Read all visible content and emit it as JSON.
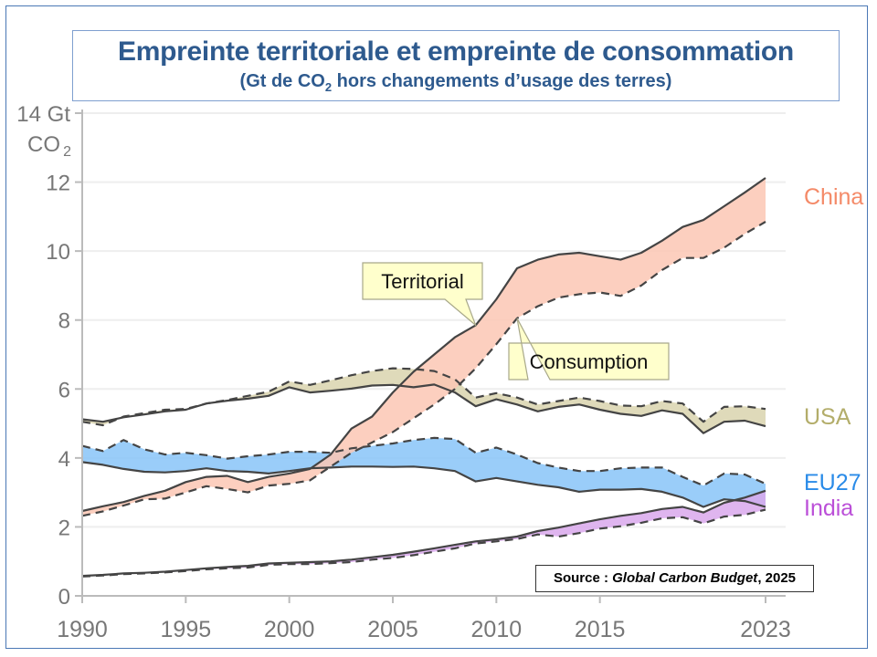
{
  "title": "Empreinte territoriale et empreinte de consommation",
  "subtitle_prefix": "(Gt de CO",
  "subtitle_sub": "2",
  "subtitle_suffix": " hors changements d’usage des terres)",
  "source": {
    "prefix": "Source : ",
    "italic": "Global Carbon Budget",
    "suffix": ", 2025"
  },
  "chart_data": {
    "type": "area",
    "title": "Empreinte territoriale et empreinte de consommation",
    "ylabel": "Gt CO2",
    "ylabel_top_line": "14 Gt",
    "ylabel_bottom_line": "CO",
    "ylabel_sub": "2",
    "ylim": [
      0,
      14
    ],
    "xlim": [
      1990,
      2023
    ],
    "yticks": [
      0,
      2,
      4,
      6,
      8,
      10,
      12
    ],
    "xticks": [
      1990,
      1995,
      2000,
      2005,
      2010,
      2015,
      2023
    ],
    "grid": true,
    "annotations": [
      {
        "text": "Territorial",
        "target": "China territorial",
        "year": 2009
      },
      {
        "text": "Consumption",
        "target": "China consumption",
        "year": 2011
      }
    ],
    "x": [
      1990,
      1991,
      1992,
      1993,
      1994,
      1995,
      1996,
      1997,
      1998,
      1999,
      2000,
      2001,
      2002,
      2003,
      2004,
      2005,
      2006,
      2007,
      2008,
      2009,
      2010,
      2011,
      2012,
      2013,
      2014,
      2015,
      2016,
      2017,
      2018,
      2019,
      2020,
      2021,
      2022,
      2023
    ],
    "series": [
      {
        "name": "USA",
        "color": "#c2bc8a",
        "fill": "#d9d4ae",
        "label_color": "#b3ad6a",
        "territorial": [
          5.12,
          5.05,
          5.18,
          5.26,
          5.35,
          5.4,
          5.58,
          5.66,
          5.72,
          5.8,
          6.05,
          5.9,
          5.95,
          6.01,
          6.1,
          6.12,
          6.05,
          6.13,
          5.9,
          5.5,
          5.7,
          5.55,
          5.35,
          5.48,
          5.55,
          5.4,
          5.28,
          5.22,
          5.38,
          5.28,
          4.72,
          5.05,
          5.08,
          4.92
        ],
        "consumption": [
          5.05,
          4.95,
          5.2,
          5.3,
          5.4,
          5.42,
          5.58,
          5.68,
          5.8,
          5.92,
          6.22,
          6.12,
          6.25,
          6.4,
          6.52,
          6.6,
          6.58,
          6.52,
          6.28,
          5.75,
          5.88,
          5.75,
          5.55,
          5.65,
          5.75,
          5.65,
          5.52,
          5.5,
          5.65,
          5.58,
          5.05,
          5.48,
          5.5,
          5.42
        ]
      },
      {
        "name": "EU27",
        "color": "#3399ee",
        "fill": "#88c4f8",
        "label_color": "#2a8be8",
        "territorial": [
          3.88,
          3.8,
          3.68,
          3.6,
          3.58,
          3.62,
          3.7,
          3.62,
          3.6,
          3.55,
          3.62,
          3.7,
          3.72,
          3.75,
          3.75,
          3.74,
          3.75,
          3.7,
          3.62,
          3.32,
          3.42,
          3.32,
          3.22,
          3.15,
          3.02,
          3.08,
          3.08,
          3.1,
          3.02,
          2.85,
          2.58,
          2.8,
          2.75,
          2.58
        ],
        "consumption": [
          4.35,
          4.2,
          4.52,
          4.25,
          4.1,
          4.15,
          4.08,
          3.98,
          4.05,
          4.1,
          4.18,
          4.18,
          4.15,
          4.28,
          4.35,
          4.42,
          4.52,
          4.58,
          4.55,
          4.15,
          4.3,
          4.1,
          3.85,
          3.72,
          3.62,
          3.62,
          3.7,
          3.72,
          3.72,
          3.45,
          3.2,
          3.55,
          3.52,
          3.25
        ]
      },
      {
        "name": "China",
        "color": "#f4a083",
        "fill": "#fbc7b4",
        "label_color": "#f48a68",
        "territorial": [
          2.46,
          2.6,
          2.72,
          2.9,
          3.05,
          3.3,
          3.45,
          3.48,
          3.3,
          3.45,
          3.55,
          3.68,
          4.1,
          4.85,
          5.2,
          5.9,
          6.5,
          7.0,
          7.5,
          7.85,
          8.6,
          9.5,
          9.75,
          9.9,
          9.95,
          9.85,
          9.75,
          9.95,
          10.3,
          10.7,
          10.9,
          11.3,
          11.7,
          12.12
        ],
        "consumption": [
          2.32,
          2.45,
          2.62,
          2.8,
          2.82,
          3.0,
          3.18,
          3.1,
          3.0,
          3.2,
          3.25,
          3.35,
          3.75,
          4.15,
          4.45,
          4.75,
          5.15,
          5.55,
          6.0,
          6.6,
          7.3,
          8.05,
          8.4,
          8.65,
          8.75,
          8.8,
          8.7,
          9.0,
          9.45,
          9.8,
          9.8,
          10.1,
          10.5,
          10.85
        ]
      },
      {
        "name": "India",
        "color": "#bb55dd",
        "fill": "#d9a8ec",
        "label_color": "#bb4fd8",
        "territorial": [
          0.58,
          0.61,
          0.65,
          0.67,
          0.7,
          0.75,
          0.8,
          0.84,
          0.87,
          0.94,
          0.96,
          0.98,
          1.0,
          1.05,
          1.12,
          1.19,
          1.28,
          1.38,
          1.48,
          1.58,
          1.64,
          1.72,
          1.88,
          1.98,
          2.1,
          2.22,
          2.32,
          2.4,
          2.52,
          2.58,
          2.42,
          2.7,
          2.85,
          3.05
        ],
        "consumption": [
          0.56,
          0.59,
          0.63,
          0.65,
          0.68,
          0.72,
          0.77,
          0.8,
          0.82,
          0.9,
          0.92,
          0.92,
          0.95,
          0.98,
          1.05,
          1.1,
          1.18,
          1.28,
          1.38,
          1.52,
          1.58,
          1.65,
          1.78,
          1.72,
          1.82,
          1.95,
          2.02,
          2.12,
          2.25,
          2.28,
          2.1,
          2.3,
          2.35,
          2.5
        ]
      }
    ]
  }
}
